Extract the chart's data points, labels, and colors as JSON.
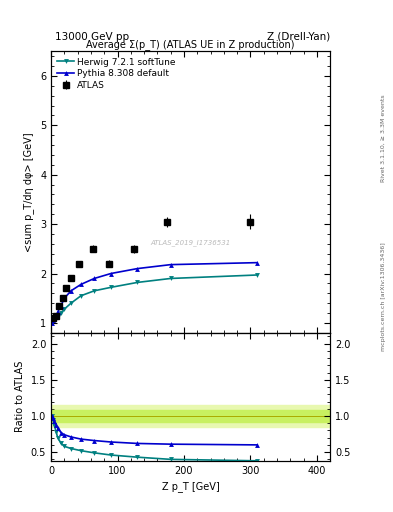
{
  "top_title_left": "13000 GeV pp",
  "top_title_right": "Z (Drell-Yan)",
  "plot_title": "Average Σ(p_T) (ATLAS UE in Z production)",
  "ylabel_main": "<sum p_T/dη dφ> [GeV]",
  "ylabel_ratio": "Ratio to ATLAS",
  "xlabel": "Z p_T [GeV]",
  "right_label_top": "Rivet 3.1.10, ≥ 3.3M events",
  "right_label_bottom": "mcplots.cern.ch [arXiv:1306.3436]",
  "watermark": "ATLAS_2019_I1736531",
  "atlas_x": [
    2.5,
    7.5,
    12.5,
    17.5,
    22.5,
    30,
    42.5,
    62.5,
    87.5,
    125,
    175,
    300
  ],
  "atlas_y": [
    1.1,
    1.15,
    1.35,
    1.5,
    1.7,
    1.9,
    2.2,
    2.5,
    2.2,
    2.5,
    3.05,
    3.05
  ],
  "atlas_yerr": [
    0.04,
    0.04,
    0.04,
    0.04,
    0.05,
    0.05,
    0.06,
    0.07,
    0.07,
    0.08,
    0.1,
    0.15
  ],
  "herwig_x": [
    1,
    3,
    5,
    7.5,
    10,
    15,
    20,
    30,
    45,
    65,
    90,
    130,
    180,
    310
  ],
  "herwig_y": [
    1.0,
    1.05,
    1.08,
    1.1,
    1.12,
    1.2,
    1.28,
    1.4,
    1.55,
    1.65,
    1.72,
    1.82,
    1.9,
    1.97
  ],
  "herwig_color": "#008080",
  "herwig_label": "Herwig 7.2.1 softTune",
  "pythia_x": [
    1,
    3,
    5,
    7.5,
    10,
    15,
    20,
    30,
    45,
    65,
    90,
    130,
    180,
    310
  ],
  "pythia_y": [
    1.0,
    1.05,
    1.1,
    1.15,
    1.22,
    1.35,
    1.5,
    1.65,
    1.78,
    1.9,
    2.0,
    2.1,
    2.18,
    2.22
  ],
  "pythia_color": "#0000cd",
  "pythia_label": "Pythia 8.308 default",
  "herwig_ratio_x": [
    1,
    3,
    5,
    7.5,
    10,
    15,
    20,
    30,
    45,
    65,
    90,
    130,
    180,
    310
  ],
  "herwig_ratio_y": [
    1.0,
    0.95,
    0.87,
    0.78,
    0.7,
    0.62,
    0.58,
    0.55,
    0.52,
    0.49,
    0.46,
    0.43,
    0.4,
    0.38
  ],
  "pythia_ratio_x": [
    1,
    3,
    5,
    7.5,
    10,
    15,
    20,
    30,
    45,
    65,
    90,
    130,
    180,
    310
  ],
  "pythia_ratio_y": [
    1.0,
    0.97,
    0.93,
    0.88,
    0.83,
    0.77,
    0.74,
    0.71,
    0.68,
    0.66,
    0.64,
    0.62,
    0.61,
    0.6
  ],
  "ylim_main": [
    0.8,
    6.5
  ],
  "ylim_ratio": [
    0.38,
    2.15
  ],
  "xlim": [
    0,
    420
  ],
  "yticks_main": [
    1,
    2,
    3,
    4,
    5,
    6
  ],
  "yticks_ratio": [
    0.5,
    1.0,
    1.5,
    2.0
  ],
  "xticks": [
    0,
    100,
    200,
    300,
    400
  ],
  "atlas_color": "#000000",
  "atlas_marker": "s",
  "atlas_markersize": 4.5,
  "band_color_inner": "#c8f060",
  "band_color_outer": "#e8f8b0",
  "band_inner_lo": 0.92,
  "band_inner_hi": 1.08,
  "band_outer_lo": 0.85,
  "band_outer_hi": 1.15,
  "figure_size": [
    3.93,
    5.12
  ],
  "dpi": 100
}
